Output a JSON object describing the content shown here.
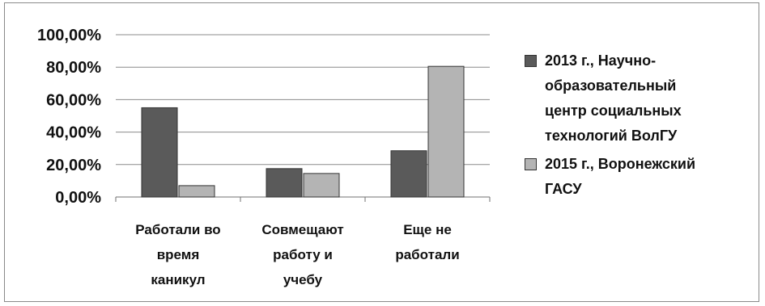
{
  "chart_data": {
    "type": "bar",
    "categories": [
      [
        "Работали во",
        "время",
        "каникул"
      ],
      [
        "Совмещают",
        "работу и",
        "учебу"
      ],
      [
        "Еще не",
        "работали"
      ]
    ],
    "series": [
      {
        "name": "2013 г., Научно-образовательный центр социальных технологий ВолГУ",
        "color": "#5a5a5a",
        "values": [
          55,
          17.5,
          28.5
        ]
      },
      {
        "name": "2015 г., Воронежский ГАСУ",
        "color": "#b4b4b4",
        "values": [
          7,
          14.5,
          80.5
        ]
      }
    ],
    "yticks": [
      "0,00%",
      "20,00%",
      "40,00%",
      "60,00%",
      "80,00%",
      "100,00%"
    ],
    "ylim": [
      0,
      100
    ],
    "grid": true,
    "legend_position": "right"
  },
  "legend": {
    "items": [
      {
        "lines": [
          "2013 г., Научно-",
          "образовательный",
          "центр социальных",
          "технологий ВолГУ"
        ]
      },
      {
        "lines": [
          "2015 г., Воронежский",
          "ГАСУ"
        ]
      }
    ]
  }
}
